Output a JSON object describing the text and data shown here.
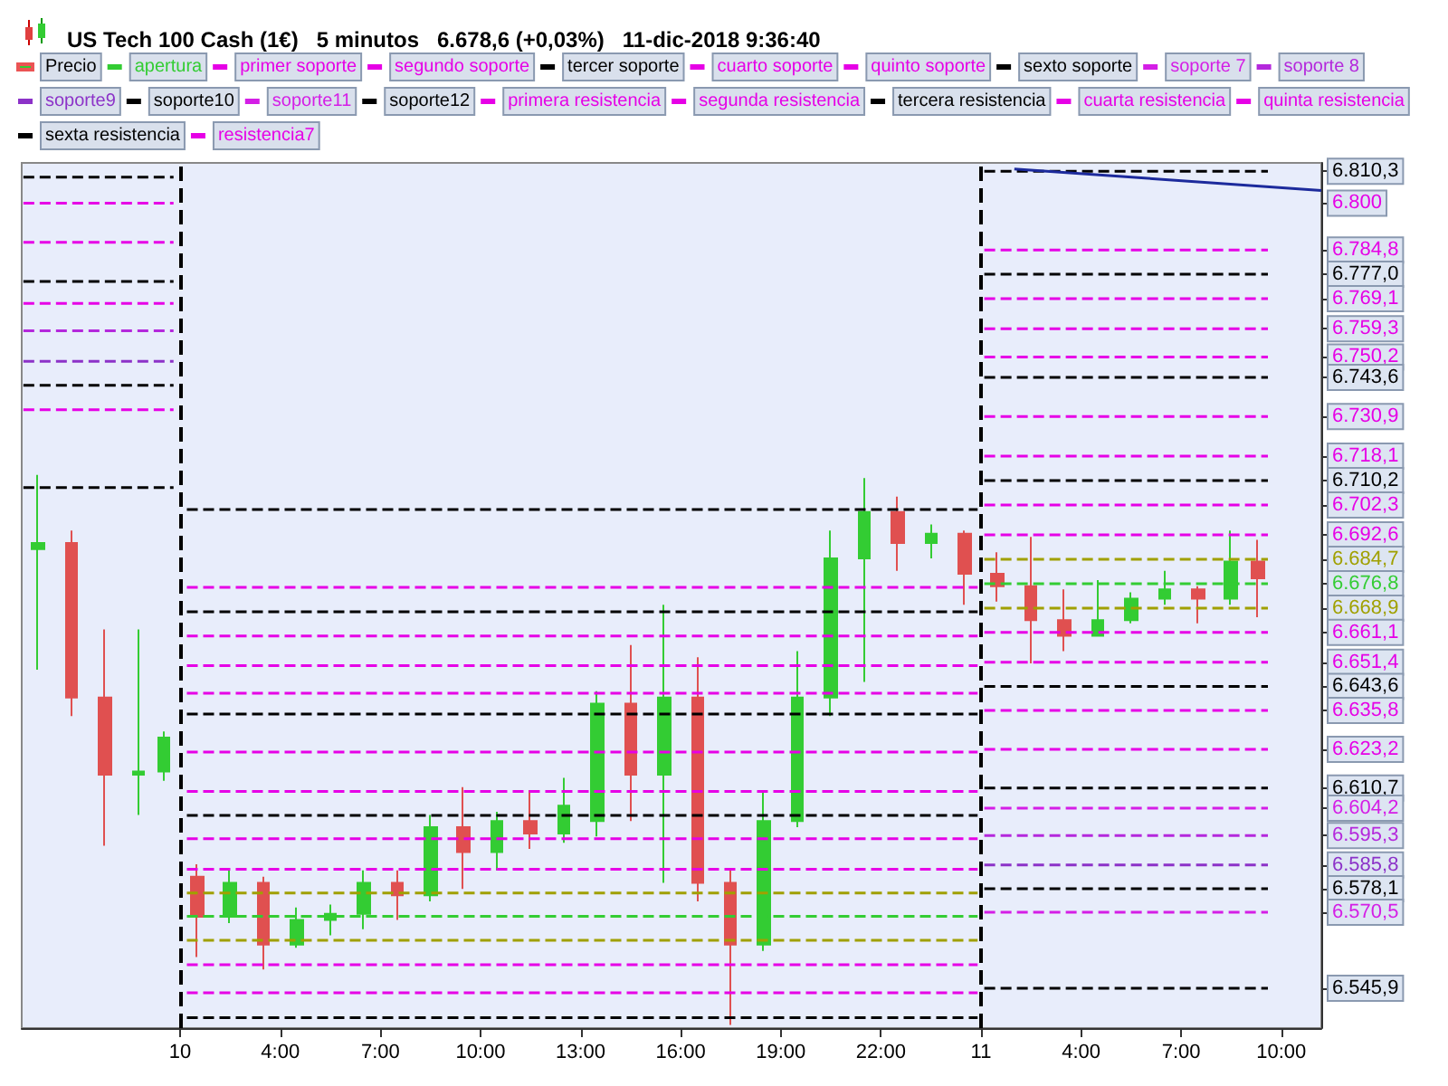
{
  "chart_data": {
    "type": "candlestick",
    "title": "US Tech 100 Cash (1€)   5 minutos   6.678,6 (+0,03%)   11-dic-2018 9:36:40",
    "legend": "top",
    "grid": false,
    "xlim": [
      "2018-12-09T20:15",
      "2018-12-11T11:12"
    ],
    "xticks": [
      {
        "value": "2018-12-10T01:00",
        "label": "10"
      },
      {
        "value": "2018-12-10T04:00",
        "label": "4:00"
      },
      {
        "value": "2018-12-10T07:00",
        "label": "7:00"
      },
      {
        "value": "2018-12-10T10:00",
        "label": "10:00"
      },
      {
        "value": "2018-12-10T13:00",
        "label": "13:00"
      },
      {
        "value": "2018-12-10T16:00",
        "label": "16:00"
      },
      {
        "value": "2018-12-10T19:00",
        "label": "19:00"
      },
      {
        "value": "2018-12-10T22:00",
        "label": "22:00"
      },
      {
        "value": "2018-12-11T01:00",
        "label": "11"
      },
      {
        "value": "2018-12-11T04:00",
        "label": "4:00"
      },
      {
        "value": "2018-12-11T07:00",
        "label": "7:00"
      },
      {
        "value": "2018-12-11T10:00",
        "label": "10:00"
      }
    ],
    "ylim": [
      6533,
      6813
    ],
    "yticks": [
      {
        "value": 6810.3,
        "label": "6.810,3"
      },
      {
        "value": 6800,
        "label": "6.800"
      },
      {
        "value": 6784.8,
        "label": "6.784,8"
      },
      {
        "value": 6777.0,
        "label": "6.777,0"
      },
      {
        "value": 6769.1,
        "label": "6.769,1"
      },
      {
        "value": 6759.3,
        "label": "6.759,3"
      },
      {
        "value": 6750.2,
        "label": "6.750,2"
      },
      {
        "value": 6743.6,
        "label": "6.743,6"
      },
      {
        "value": 6730.9,
        "label": "6.730,9"
      },
      {
        "value": 6718.1,
        "label": "6.718,1"
      },
      {
        "value": 6710.2,
        "label": "6.710,2"
      },
      {
        "value": 6702.3,
        "label": "6.702,3"
      },
      {
        "value": 6692.6,
        "label": "6.692,6"
      },
      {
        "value": 6684.7,
        "label": "6.684,7"
      },
      {
        "value": 6676.8,
        "label": "6.676,8"
      },
      {
        "value": 6668.9,
        "label": "6.668,9"
      },
      {
        "value": 6661.1,
        "label": "6.661,1"
      },
      {
        "value": 6651.4,
        "label": "6.651,4"
      },
      {
        "value": 6643.6,
        "label": "6.643,6"
      },
      {
        "value": 6635.8,
        "label": "6.635,8"
      },
      {
        "value": 6623.2,
        "label": "6.623,2"
      },
      {
        "value": 6610.7,
        "label": "6.610,7"
      },
      {
        "value": 6604.2,
        "label": "6.604,2"
      },
      {
        "value": 6595.3,
        "label": "6.595,3"
      },
      {
        "value": 6585.8,
        "label": "6.585,8"
      },
      {
        "value": 6578.1,
        "label": "6.578,1"
      },
      {
        "value": 6570.5,
        "label": "6.570,5"
      },
      {
        "value": 6545.9,
        "label": "6.545,9"
      }
    ],
    "ref_lines": [
      {
        "axis": "x",
        "value": "2018-12-10T01:00",
        "color": "#000000",
        "line_style": "dashed"
      },
      {
        "axis": "x",
        "value": "2018-12-11T01:00",
        "color": "#000000",
        "line_style": "dashed"
      }
    ],
    "series": [
      {
        "name": "Precio",
        "x": [
          "2018-12-09T20:45",
          "2018-12-09T21:45",
          "2018-12-09T22:45",
          "2018-12-09T23:45",
          "2018-12-10T00:30",
          "2018-12-10T01:30",
          "2018-12-10T02:30",
          "2018-12-10T03:30",
          "2018-12-10T04:30",
          "2018-12-10T05:30",
          "2018-12-10T06:30",
          "2018-12-10T07:30",
          "2018-12-10T08:30",
          "2018-12-10T09:30",
          "2018-12-10T10:30",
          "2018-12-10T11:30",
          "2018-12-10T12:30",
          "2018-12-10T13:30",
          "2018-12-10T14:30",
          "2018-12-10T15:30",
          "2018-12-10T16:30",
          "2018-12-10T17:30",
          "2018-12-10T18:30",
          "2018-12-10T19:30",
          "2018-12-10T20:30",
          "2018-12-10T21:30",
          "2018-12-10T22:30",
          "2018-12-10T23:30",
          "2018-12-11T00:30",
          "2018-12-11T01:30",
          "2018-12-11T02:30",
          "2018-12-11T03:30",
          "2018-12-11T04:30",
          "2018-12-11T05:30",
          "2018-12-11T06:30",
          "2018-12-11T07:30",
          "2018-12-11T08:30",
          "2018-12-11T09:18"
        ],
        "ohlc": [
          [
            6688,
            6712,
            6649,
            6690
          ],
          [
            6690,
            6694,
            6634,
            6640
          ],
          [
            6640,
            6662,
            6592,
            6615
          ],
          [
            6615,
            6662,
            6602,
            6616
          ],
          [
            6616,
            6629,
            6613,
            6627
          ],
          [
            6582,
            6586,
            6556,
            6569
          ],
          [
            6569,
            6584,
            6567,
            6580
          ],
          [
            6580,
            6582,
            6552,
            6560
          ],
          [
            6560,
            6572,
            6559,
            6568
          ],
          [
            6568,
            6573,
            6563,
            6570
          ],
          [
            6570,
            6584,
            6565,
            6580
          ],
          [
            6580,
            6584,
            6568,
            6576
          ],
          [
            6576,
            6602,
            6574,
            6598
          ],
          [
            6598,
            6611,
            6578,
            6590
          ],
          [
            6590,
            6603,
            6584,
            6600
          ],
          [
            6600,
            6610,
            6591,
            6596
          ],
          [
            6596,
            6614,
            6593,
            6605
          ],
          [
            6600,
            6642,
            6595,
            6638
          ],
          [
            6638,
            6657,
            6600,
            6615
          ],
          [
            6615,
            6670,
            6580,
            6640
          ],
          [
            6640,
            6653,
            6574,
            6580
          ],
          [
            6580,
            6584,
            6534,
            6560
          ],
          [
            6560,
            6610,
            6558,
            6600
          ],
          [
            6600,
            6655,
            6598,
            6640
          ],
          [
            6640,
            6694,
            6634,
            6685
          ],
          [
            6685,
            6711,
            6645,
            6700
          ],
          [
            6700,
            6705,
            6681,
            6690
          ],
          [
            6690,
            6696,
            6685,
            6693
          ],
          [
            6693,
            6694,
            6670,
            6680
          ],
          [
            6680,
            6687,
            6671,
            6676
          ],
          [
            6676,
            6692,
            6651,
            6665
          ],
          [
            6665,
            6675,
            6655,
            6660
          ],
          [
            6660,
            6678,
            6660,
            6665
          ],
          [
            6665,
            6674,
            6664,
            6672
          ],
          [
            6672,
            6681,
            6670,
            6675
          ],
          [
            6675,
            6676,
            6664,
            6672
          ],
          [
            6672,
            6694,
            6670,
            6684
          ],
          [
            6684,
            6691,
            6666,
            6678.6
          ]
        ],
        "colors": [
          "#33cc33",
          "#e05050",
          "#e05050",
          "#33cc33",
          "#33cc33",
          "#e05050",
          "#33cc33",
          "#e05050",
          "#33cc33",
          "#33cc33",
          "#33cc33",
          "#e05050",
          "#33cc33",
          "#e05050",
          "#33cc33",
          "#e05050",
          "#33cc33",
          "#33cc33",
          "#e05050",
          "#33cc33",
          "#e05050",
          "#e05050",
          "#33cc33",
          "#33cc33",
          "#33cc33",
          "#33cc33",
          "#e05050",
          "#33cc33",
          "#e05050",
          "#e05050",
          "#e05050",
          "#e05050",
          "#33cc33",
          "#33cc33",
          "#33cc33",
          "#e05050",
          "#33cc33",
          "#e05050"
        ]
      },
      {
        "name": "apertura",
        "type": "line",
        "color": "#33cc33",
        "line_style": "dashed",
        "x": [
          "2018-12-10T01:12",
          "2018-12-11T00:54",
          "2018-12-11T01:00",
          "2018-12-11T01:06",
          "2018-12-11T09:36"
        ],
        "values": [
          6569.2,
          6569.2,
          null,
          6676.8,
          6676.8
        ]
      },
      {
        "name": "primer soporte",
        "type": "line",
        "color": "#e600e6",
        "line_style": "dashed",
        "x": [
          "2018-12-10T01:12",
          "2018-12-11T00:54",
          "2018-12-11T01:00",
          "2018-12-11T01:06",
          "2018-12-11T09:36"
        ],
        "values": [
          6553.5,
          6553.5,
          null,
          6661.1,
          6661.1
        ]
      },
      {
        "name": "segundo soporte",
        "type": "line",
        "color": "#e600e6",
        "line_style": "dashed",
        "x": [
          "2018-12-10T01:12",
          "2018-12-11T00:54",
          "2018-12-11T01:00",
          "2018-12-11T01:06",
          "2018-12-11T09:36"
        ],
        "values": [
          6544.4,
          6544.4,
          null,
          6651.4,
          6651.4
        ]
      },
      {
        "name": "tercer soporte",
        "type": "line",
        "color": "#000000",
        "line_style": "dashed",
        "x": [
          "2018-12-10T01:12",
          "2018-12-11T00:54",
          "2018-12-11T01:00",
          "2018-12-11T01:06",
          "2018-12-11T09:36"
        ],
        "values": [
          6536.4,
          6536.4,
          null,
          6643.6,
          6643.6
        ]
      },
      {
        "name": "cuarto soporte",
        "type": "line",
        "color": "#e600e6",
        "line_style": "dashed",
        "x": [
          "2018-12-11T01:06",
          "2018-12-11T09:36"
        ],
        "values": [
          6635.8,
          6635.8
        ]
      },
      {
        "name": "quinto soporte",
        "type": "line",
        "color": "#e600e6",
        "line_style": "dashed",
        "x": [
          "2018-12-11T01:06",
          "2018-12-11T09:36"
        ],
        "values": [
          6623.2,
          6623.2
        ]
      },
      {
        "name": "sexto soporte",
        "type": "line",
        "color": "#000000",
        "line_style": "dashed",
        "x": [
          "2018-12-11T01:06",
          "2018-12-11T09:36"
        ],
        "values": [
          6610.7,
          6610.7
        ]
      },
      {
        "name": "soporte 7",
        "type": "line",
        "color": "#d41ee6",
        "line_style": "dashed",
        "x": [
          "2018-12-11T01:06",
          "2018-12-11T09:36"
        ],
        "values": [
          6604.2,
          6604.2
        ]
      },
      {
        "name": "soporte 8",
        "type": "line",
        "color": "#b428dc",
        "line_style": "dashed",
        "x": [
          "2018-12-11T01:06",
          "2018-12-11T09:36"
        ],
        "values": [
          6595.3,
          6595.3
        ]
      },
      {
        "name": "soporte9",
        "type": "line",
        "color": "#8c32c8",
        "line_style": "dashed",
        "x": [
          "2018-12-11T01:06",
          "2018-12-11T09:36"
        ],
        "values": [
          6585.8,
          6585.8
        ]
      },
      {
        "name": "soporte10",
        "type": "line",
        "color": "#000000",
        "line_style": "dashed",
        "x": [
          "2018-12-11T01:06",
          "2018-12-11T09:36"
        ],
        "values": [
          6578.1,
          6578.1
        ]
      },
      {
        "name": "soporte11",
        "type": "line",
        "color": "#d41ee6",
        "line_style": "dashed",
        "x": [
          "2018-12-11T01:06",
          "2018-12-11T09:36"
        ],
        "values": [
          6570.5,
          6570.5
        ]
      },
      {
        "name": "soporte12",
        "type": "line",
        "color": "#000000",
        "line_style": "dashed",
        "x": [
          "2018-12-11T01:06",
          "2018-12-11T09:36"
        ],
        "values": [
          6545.9,
          6545.9
        ]
      },
      {
        "name": "primera resistencia",
        "type": "line",
        "color": "#e600e6",
        "line_style": "dashed",
        "x": [
          "2018-12-10T01:12",
          "2018-12-11T00:54",
          "2018-12-11T01:00",
          "2018-12-11T01:06",
          "2018-12-11T09:36"
        ],
        "values": [
          6584.4,
          6584.4,
          null,
          6692.6,
          6692.6
        ]
      },
      {
        "name": "segunda resistencia",
        "type": "line",
        "color": "#e600e6",
        "line_style": "dashed",
        "x": [
          "2018-12-10T01:12",
          "2018-12-11T00:54",
          "2018-12-11T01:00",
          "2018-12-11T01:06",
          "2018-12-11T09:36"
        ],
        "values": [
          6594.3,
          6594.3,
          null,
          6702.3,
          6702.3
        ]
      },
      {
        "name": "tercera resistencia",
        "type": "line",
        "color": "#000000",
        "line_style": "dashed",
        "x": [
          "2018-12-10T01:12",
          "2018-12-11T00:54",
          "2018-12-11T01:00",
          "2018-12-11T01:06",
          "2018-12-11T09:36"
        ],
        "values": [
          6601.8,
          6601.8,
          null,
          6710.2,
          6710.2
        ]
      },
      {
        "name": "cuarta resistencia",
        "type": "line",
        "color": "#e600e6",
        "line_style": "dashed",
        "x": [
          "2018-12-10T01:12",
          "2018-12-11T00:54",
          "2018-12-11T01:00",
          "2018-12-11T01:06",
          "2018-12-11T09:36"
        ],
        "values": [
          6609.6,
          6609.6,
          null,
          6718.1,
          6718.1
        ]
      },
      {
        "name": "quinta resistencia",
        "type": "line",
        "color": "#e600e6",
        "line_style": "dashed",
        "x": [
          "2018-12-10T01:12",
          "2018-12-11T00:54",
          "2018-12-11T01:00",
          "2018-12-11T01:06",
          "2018-12-11T09:36"
        ],
        "values": [
          6622.3,
          6622.3,
          null,
          6730.9,
          6730.9
        ]
      },
      {
        "name": "sexta resistencia",
        "type": "line",
        "color": "#000000",
        "line_style": "dashed",
        "x": [
          "2018-12-10T01:12",
          "2018-12-11T00:54",
          "2018-12-11T01:00",
          "2018-12-11T01:06",
          "2018-12-11T09:36"
        ],
        "values": [
          6634.6,
          6634.6,
          null,
          6743.6,
          6743.6
        ]
      },
      {
        "name": "resistencia7",
        "type": "line",
        "color": "#e600e6",
        "line_style": "dashed",
        "x": [
          "2018-12-10T01:12",
          "2018-12-11T00:54",
          "2018-12-11T01:00",
          "2018-12-11T01:06",
          "2018-12-11T09:36"
        ],
        "values": [
          6641.4,
          6641.4,
          null,
          6750.2,
          6750.2
        ]
      },
      {
        "type": "line",
        "color": "#e600e6",
        "line_style": "dashed",
        "x": [
          "2018-12-10T01:12",
          "2018-12-11T00:54",
          "2018-12-11T01:00",
          "2018-12-11T01:06",
          "2018-12-11T09:36"
        ],
        "values": [
          6650.3,
          6650.3,
          null,
          6759.3,
          6759.3
        ]
      },
      {
        "type": "line",
        "color": "#e600e6",
        "line_style": "dashed",
        "x": [
          "2018-12-10T01:12",
          "2018-12-11T00:54",
          "2018-12-11T01:00",
          "2018-12-11T01:06",
          "2018-12-11T09:36"
        ],
        "values": [
          6659.9,
          6659.9,
          null,
          6769.1,
          6769.1
        ]
      },
      {
        "type": "line",
        "color": "#000000",
        "line_style": "dashed",
        "x": [
          "2018-12-10T01:12",
          "2018-12-11T00:54",
          "2018-12-11T01:00",
          "2018-12-11T01:06",
          "2018-12-11T09:36"
        ],
        "values": [
          6667.7,
          6667.7,
          null,
          6777.0,
          6777.0
        ]
      },
      {
        "type": "line",
        "color": "#e600e6",
        "line_style": "dashed",
        "x": [
          "2018-12-10T01:12",
          "2018-12-11T00:54",
          "2018-12-11T01:00",
          "2018-12-11T01:06",
          "2018-12-11T09:36"
        ],
        "values": [
          6675.6,
          6675.6,
          null,
          6784.8,
          6784.8
        ]
      },
      {
        "type": "line",
        "color": "#000000",
        "line_style": "dashed",
        "x": [
          "2018-12-10T01:12",
          "2018-12-11T00:54",
          "2018-12-11T01:00",
          "2018-12-11T01:06",
          "2018-12-11T09:36"
        ],
        "values": [
          6700.8,
          6700.8,
          null,
          6810.3,
          6810.3
        ]
      },
      {
        "type": "line",
        "color": "#a0a000",
        "line_style": "dashed",
        "x": [
          "2018-12-10T01:12",
          "2018-12-11T00:54",
          "2018-12-11T01:00",
          "2018-12-11T01:06",
          "2018-12-11T09:36"
        ],
        "values": [
          6576.7,
          6576.7,
          null,
          6684.7,
          6684.7
        ]
      },
      {
        "type": "line",
        "color": "#a0a000",
        "line_style": "dashed",
        "x": [
          "2018-12-10T01:12",
          "2018-12-11T00:54",
          "2018-12-11T01:00",
          "2018-12-11T01:06",
          "2018-12-11T09:36"
        ],
        "values": [
          6561.4,
          6561.4,
          null,
          6668.9,
          6668.9
        ]
      },
      {
        "type": "line",
        "color": "#000000",
        "line_style": "dashed",
        "x": [
          "2018-12-09T20:18",
          "2018-12-10T00:48"
        ],
        "values": [
          6808.4,
          6808.4
        ]
      },
      {
        "type": "line",
        "color": "#e600e6",
        "line_style": "dashed",
        "x": [
          "2018-12-09T20:18",
          "2018-12-10T00:48"
        ],
        "values": [
          6800.0,
          6800.0
        ]
      },
      {
        "type": "line",
        "color": "#e600e6",
        "line_style": "dashed",
        "x": [
          "2018-12-09T20:18",
          "2018-12-10T00:48"
        ],
        "values": [
          6787.3,
          6787.3
        ]
      },
      {
        "type": "line",
        "color": "#000000",
        "line_style": "dashed",
        "x": [
          "2018-12-09T20:18",
          "2018-12-10T00:48"
        ],
        "values": [
          6774.6,
          6774.6
        ]
      },
      {
        "type": "line",
        "color": "#e600e6",
        "line_style": "dashed",
        "x": [
          "2018-12-09T20:18",
          "2018-12-10T00:48"
        ],
        "values": [
          6767.5,
          6767.5
        ]
      },
      {
        "type": "line",
        "color": "#b428dc",
        "line_style": "dashed",
        "x": [
          "2018-12-09T20:18",
          "2018-12-10T00:48"
        ],
        "values": [
          6758.7,
          6758.7
        ]
      },
      {
        "type": "line",
        "color": "#8c32c8",
        "line_style": "dashed",
        "x": [
          "2018-12-09T20:18",
          "2018-12-10T00:48"
        ],
        "values": [
          6748.8,
          6748.8
        ]
      },
      {
        "type": "line",
        "color": "#000000",
        "line_style": "dashed",
        "x": [
          "2018-12-09T20:18",
          "2018-12-10T00:48"
        ],
        "values": [
          6741.0,
          6741.0
        ]
      },
      {
        "type": "line",
        "color": "#e600e6",
        "line_style": "dashed",
        "x": [
          "2018-12-09T20:18",
          "2018-12-10T00:48"
        ],
        "values": [
          6733.1,
          6733.1
        ]
      },
      {
        "type": "line",
        "color": "#000000",
        "line_style": "dashed",
        "x": [
          "2018-12-09T20:18",
          "2018-12-10T00:48"
        ],
        "values": [
          6707.9,
          6707.9
        ]
      },
      {
        "type": "line",
        "color": "#1c2a9c",
        "line_style": "solid",
        "x": [
          "2018-12-11T02:00",
          "2018-12-11T11:12"
        ],
        "values": [
          6811,
          6804.1
        ]
      }
    ]
  }
}
